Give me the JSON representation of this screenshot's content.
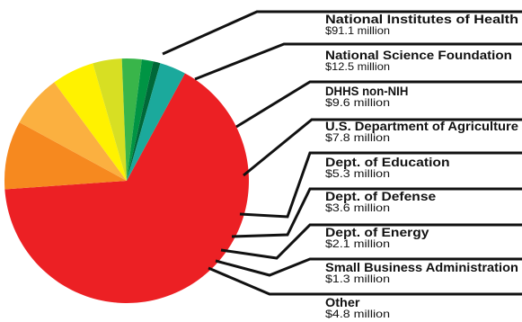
{
  "chart_data": {
    "type": "pie",
    "unit": "$ million",
    "slices": [
      {
        "name": "National Institutes of Health",
        "value": 91.1,
        "label": "$91.1 million",
        "color": "#ec2024"
      },
      {
        "name": "National Science Foundation",
        "value": 12.5,
        "label": "$12.5 million",
        "color": "#f6891f"
      },
      {
        "name": "DHHS non-NIH",
        "value": 9.6,
        "label": "$9.6 million",
        "color": "#fbb040"
      },
      {
        "name": "U.S. Department of Agriculture",
        "value": 7.8,
        "label": "$7.8 million",
        "color": "#fff200"
      },
      {
        "name": "Dept. of Education",
        "value": 5.3,
        "label": "$5.3 million",
        "color": "#d7df23"
      },
      {
        "name": "Dept. of Defense",
        "value": 3.6,
        "label": "$3.6 million",
        "color": "#39b54a"
      },
      {
        "name": "Dept. of Energy",
        "value": 2.1,
        "label": "$2.1 million",
        "color": "#009444"
      },
      {
        "name": "Small Business Administration",
        "value": 1.3,
        "label": "$1.3 million",
        "color": "#006838"
      },
      {
        "name": "Other",
        "value": 4.8,
        "label": "$4.8 million",
        "color": "#1ba99c"
      }
    ],
    "legend_position": "right"
  }
}
